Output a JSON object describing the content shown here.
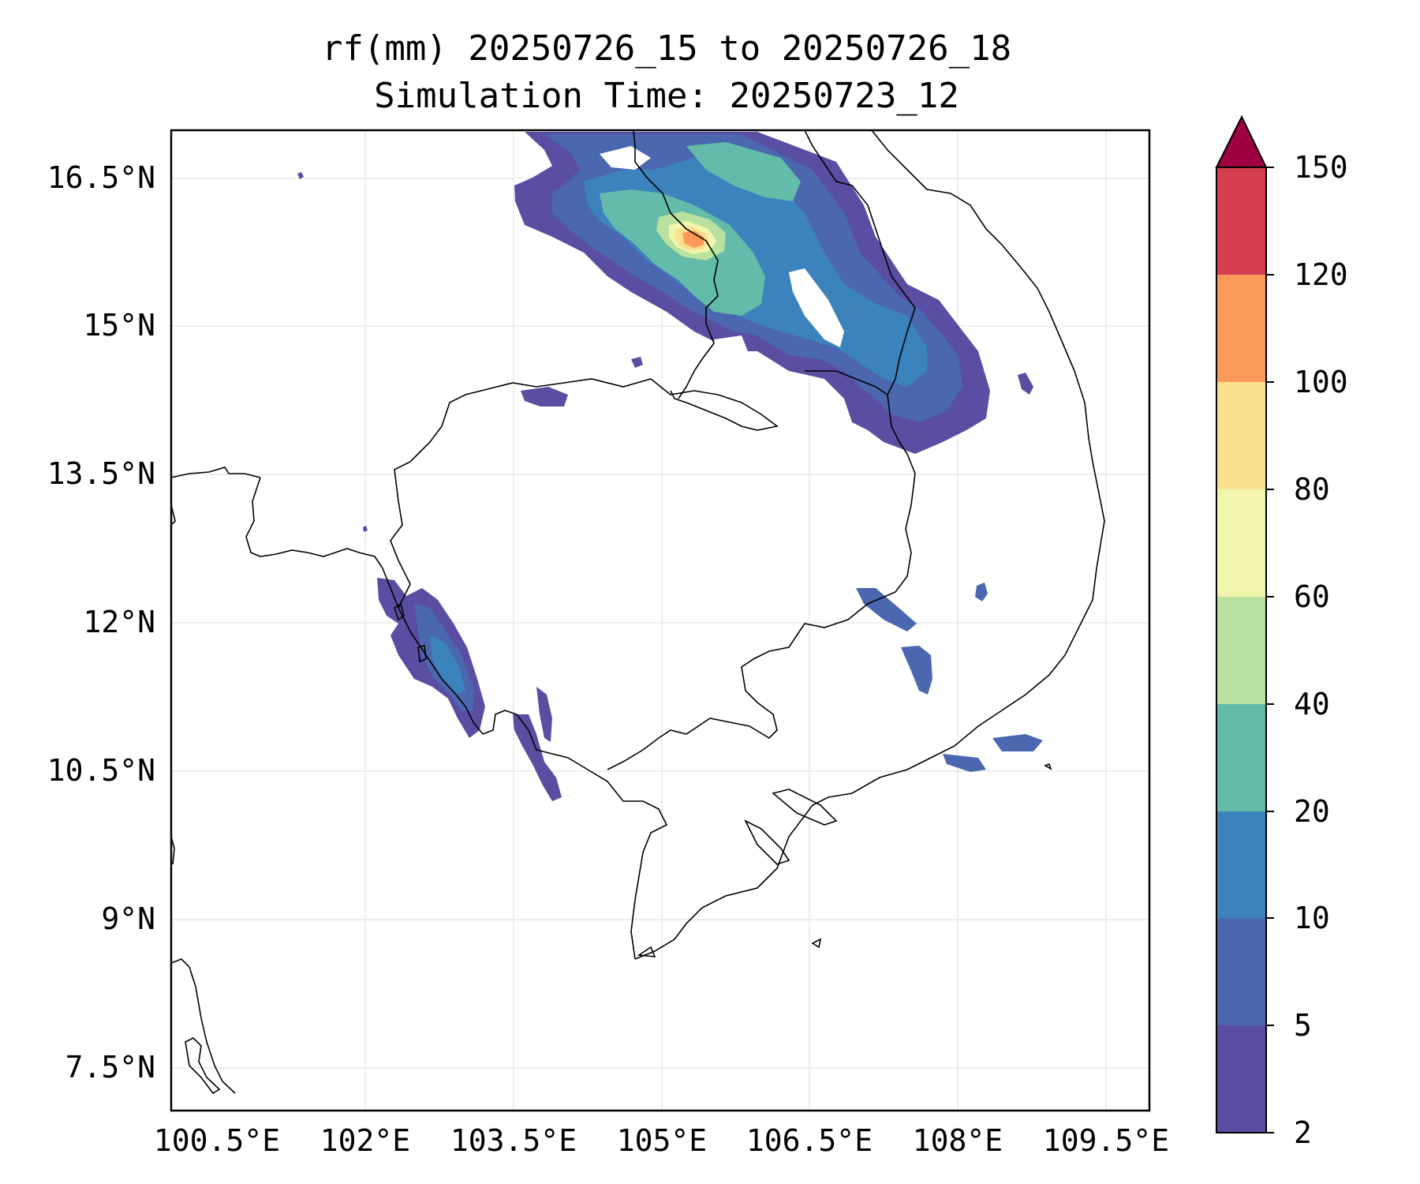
{
  "title": {
    "line1": "rf(mm) 20250726_15 to 20250726_18",
    "line2": "Simulation Time: 20250723_12"
  },
  "map": {
    "lon_ticks": [
      "100.5°E",
      "102°E",
      "103.5°E",
      "105°E",
      "106.5°E",
      "108°E",
      "109.5°E"
    ],
    "lat_ticks": [
      "16.5°N",
      "15°N",
      "13.5°N",
      "12°N",
      "10.5°N",
      "9°N",
      "7.5°N"
    ],
    "lon_range": [
      100.25,
      110.2
    ],
    "lat_range": [
      7.0,
      16.95
    ],
    "gridlines": true
  },
  "colorbar": {
    "ticks": [
      "2",
      "5",
      "10",
      "20",
      "40",
      "60",
      "80",
      "100",
      "120",
      "150"
    ],
    "colors": [
      "#5a4ea2",
      "#4a67b0",
      "#3c83bd",
      "#63bca9",
      "#b9e19f",
      "#f2f6ad",
      "#fbe08f",
      "#f99a59",
      "#d43e4f"
    ],
    "extend_color": "#9e0142",
    "extend": "max"
  }
}
